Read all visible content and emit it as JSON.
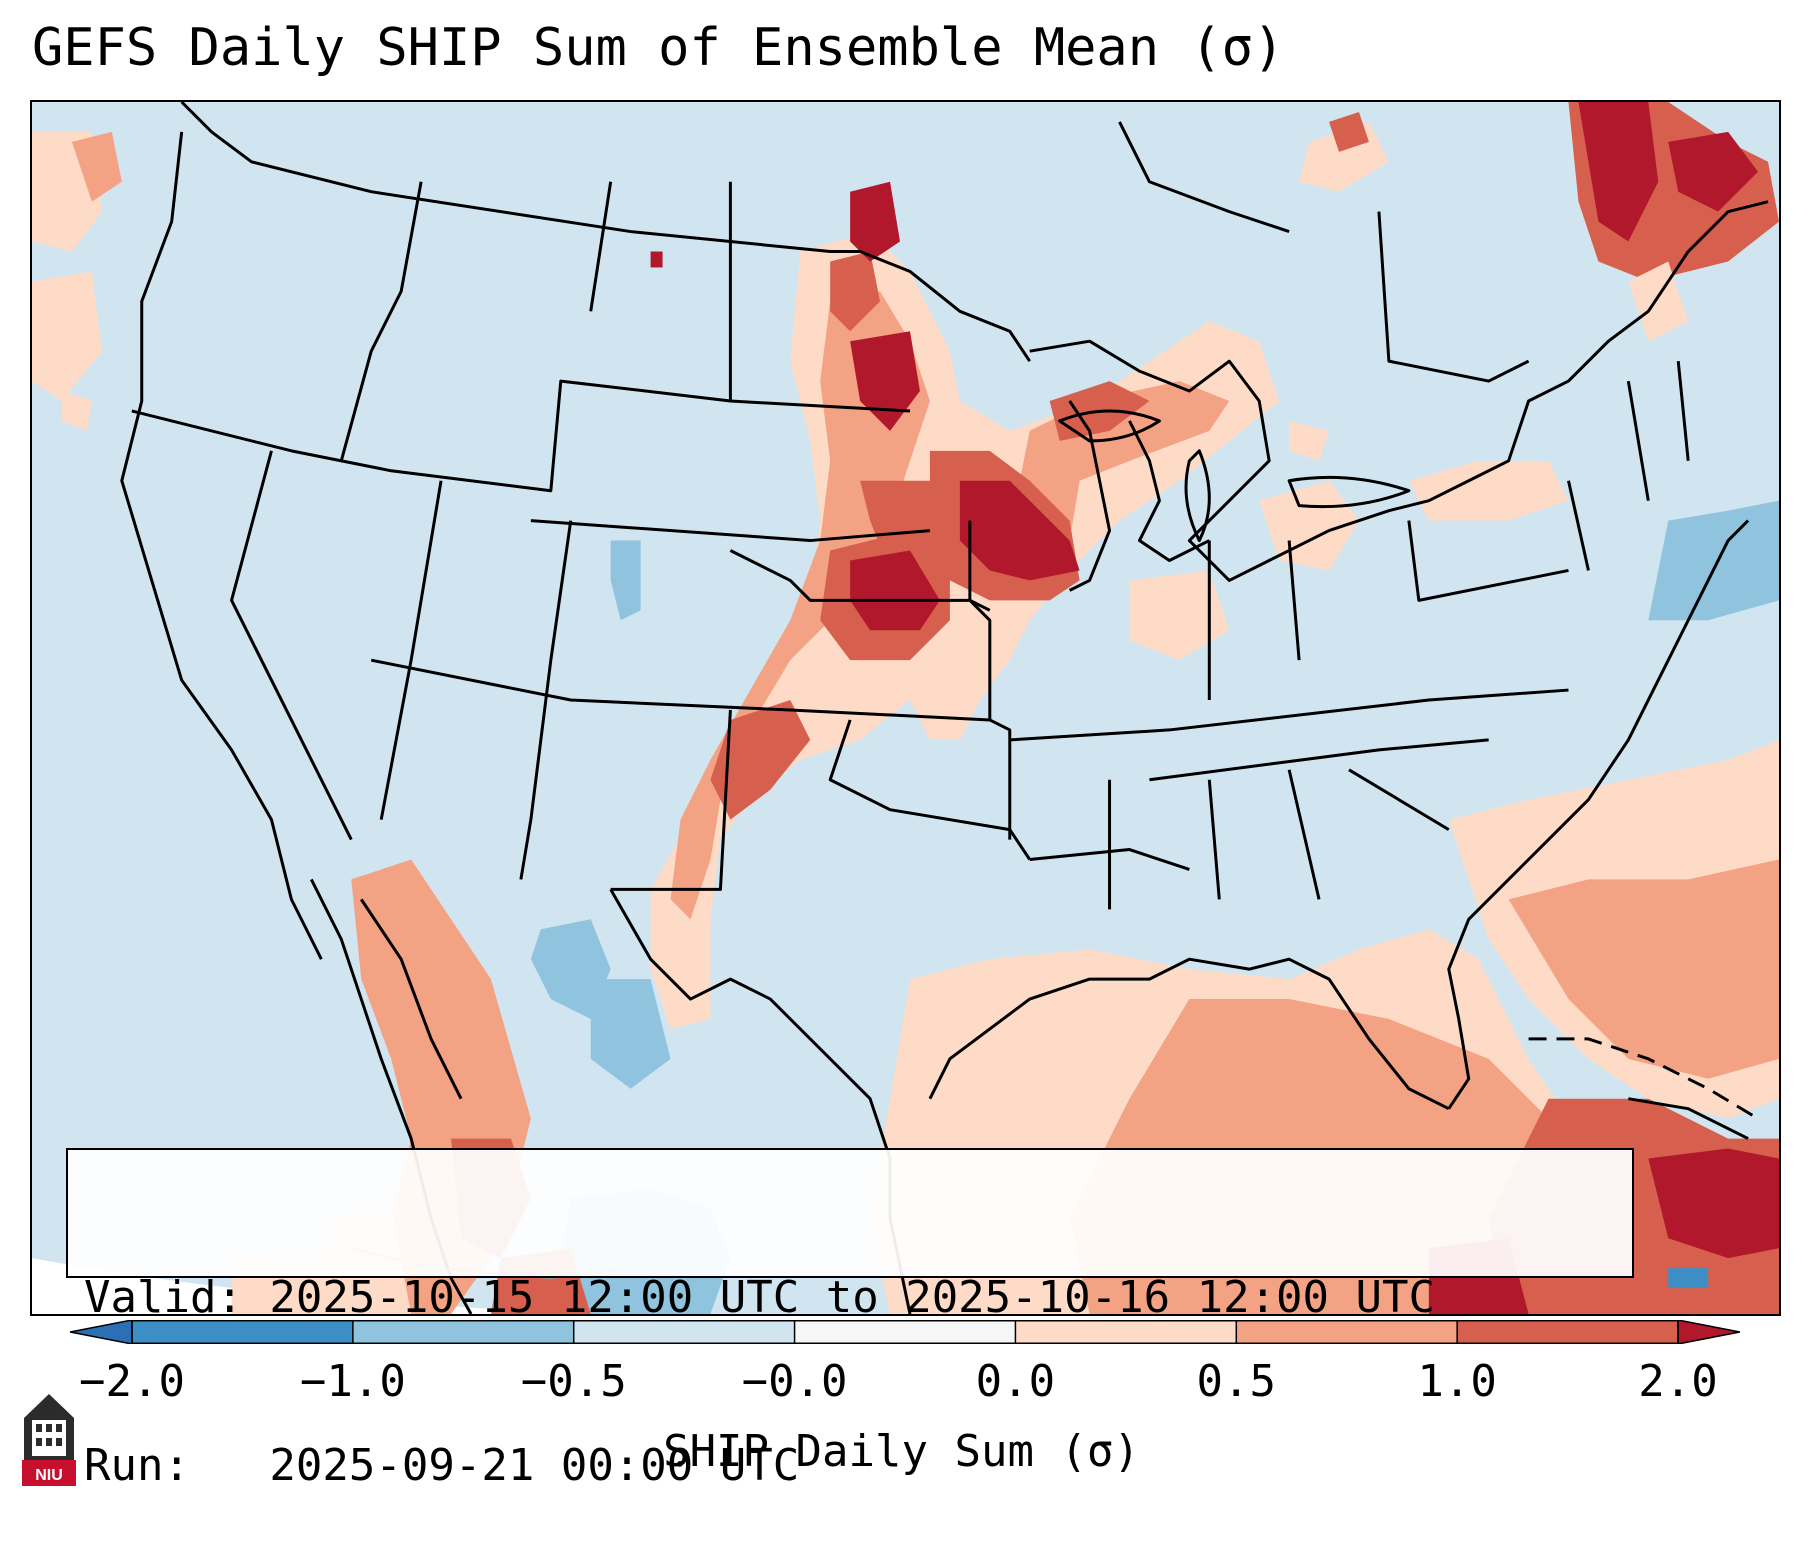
{
  "title": "GEFS Daily SHIP Sum of Ensemble Mean (σ)",
  "info_box": {
    "valid_line": "Valid: 2025-10-15 12:00 UTC to 2025-10-16 12:00 UTC",
    "run_line": "Run:   2025-09-21 00:00 UTC"
  },
  "colorbar": {
    "label": "SHIP Daily Sum (σ)",
    "ticks": [
      "−2.0",
      "−1.0",
      "−0.5",
      "−0.0",
      "0.0",
      "0.5",
      "1.0",
      "2.0"
    ],
    "bins": [
      {
        "color": "#2b6fb5"
      },
      {
        "color": "#3f8fc7"
      },
      {
        "color": "#8fc3de"
      },
      {
        "color": "#d1e5f0"
      },
      {
        "color": "#f7f7f7"
      },
      {
        "color": "#fddbc7"
      },
      {
        "color": "#f3a283"
      },
      {
        "color": "#d6604d"
      },
      {
        "color": "#b2182b"
      }
    ]
  },
  "map": {
    "background_color": "#d1e5f0",
    "border_color": "#000000"
  },
  "logo": {
    "icon": "niu-logo-icon",
    "text": "NIU"
  }
}
